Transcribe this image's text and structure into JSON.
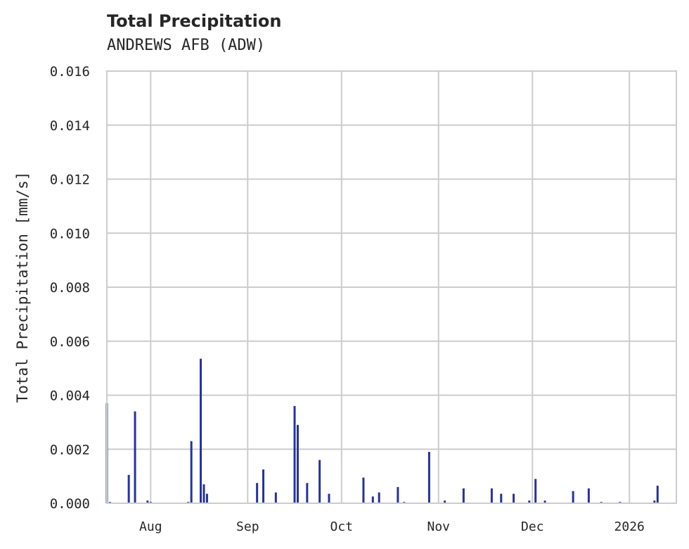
{
  "chart_data": {
    "type": "bar",
    "title": "Total Precipitation",
    "subtitle": "ANDREWS AFB (ADW)",
    "xlabel": "",
    "ylabel": "Total Precipitation [mm/s]",
    "ylim": [
      0,
      0.016
    ],
    "yticks": [
      "0.000",
      "0.002",
      "0.004",
      "0.006",
      "0.008",
      "0.010",
      "0.012",
      "0.014",
      "0.016"
    ],
    "xticks": [
      "Aug",
      "Sep",
      "Oct",
      "Nov",
      "Dec",
      "2026"
    ],
    "grid": true,
    "legend": null,
    "series_color": "#253494",
    "x_range": [
      "2025-07-18",
      "2026-01-16"
    ],
    "series": [
      {
        "name": "Total Precipitation",
        "points": [
          {
            "x": "2025-07-18",
            "y": 0.0037
          },
          {
            "x": "2025-07-19",
            "y": 5e-05
          },
          {
            "x": "2025-07-25",
            "y": 0.00105
          },
          {
            "x": "2025-07-27",
            "y": 0.0034
          },
          {
            "x": "2025-07-31",
            "y": 0.0001
          },
          {
            "x": "2025-08-01",
            "y": 5e-05
          },
          {
            "x": "2025-08-13",
            "y": 5e-05
          },
          {
            "x": "2025-08-14",
            "y": 0.0023
          },
          {
            "x": "2025-08-17",
            "y": 0.00535
          },
          {
            "x": "2025-08-18",
            "y": 0.0007
          },
          {
            "x": "2025-08-19",
            "y": 0.00035
          },
          {
            "x": "2025-09-04",
            "y": 0.00075
          },
          {
            "x": "2025-09-06",
            "y": 0.00125
          },
          {
            "x": "2025-09-10",
            "y": 0.0004
          },
          {
            "x": "2025-09-16",
            "y": 0.0036
          },
          {
            "x": "2025-09-17",
            "y": 0.0029
          },
          {
            "x": "2025-09-20",
            "y": 0.00075
          },
          {
            "x": "2025-09-24",
            "y": 0.0016
          },
          {
            "x": "2025-09-27",
            "y": 0.00035
          },
          {
            "x": "2025-10-08",
            "y": 0.00095
          },
          {
            "x": "2025-10-11",
            "y": 0.00025
          },
          {
            "x": "2025-10-13",
            "y": 0.0004
          },
          {
            "x": "2025-10-19",
            "y": 0.0006
          },
          {
            "x": "2025-10-21",
            "y": 5e-05
          },
          {
            "x": "2025-10-29",
            "y": 0.0019
          },
          {
            "x": "2025-11-03",
            "y": 0.0001
          },
          {
            "x": "2025-11-09",
            "y": 0.00055
          },
          {
            "x": "2025-11-18",
            "y": 0.00055
          },
          {
            "x": "2025-11-21",
            "y": 0.00035
          },
          {
            "x": "2025-11-25",
            "y": 0.00035
          },
          {
            "x": "2025-11-30",
            "y": 0.0001
          },
          {
            "x": "2025-12-02",
            "y": 0.0009
          },
          {
            "x": "2025-12-05",
            "y": 0.0001
          },
          {
            "x": "2025-12-14",
            "y": 0.00045
          },
          {
            "x": "2025-12-19",
            "y": 0.00055
          },
          {
            "x": "2025-12-23",
            "y": 5e-05
          },
          {
            "x": "2025-12-29",
            "y": 5e-05
          },
          {
            "x": "2026-01-09",
            "y": 0.0001
          },
          {
            "x": "2026-01-10",
            "y": 0.00065
          }
        ]
      }
    ]
  }
}
